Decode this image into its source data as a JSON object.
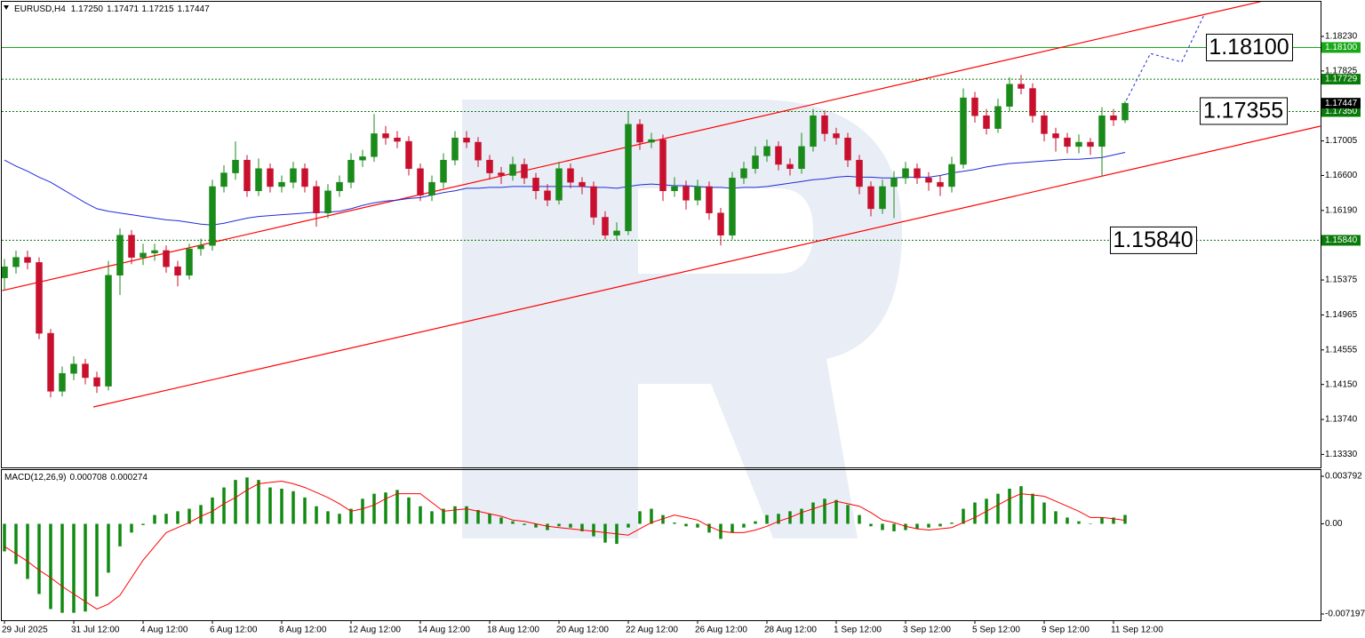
{
  "chart_data": [
    {
      "type": "candlestick",
      "title": "EURUSD,H4",
      "title_values": [
        "1.17250",
        "1.17471",
        "1.17215",
        "1.17447"
      ],
      "categories": [
        "29 Jul 2025",
        null,
        null,
        null,
        null,
        null,
        "31 Jul 12:00",
        null,
        null,
        null,
        null,
        null,
        "4 Aug 12:00",
        null,
        null,
        null,
        null,
        null,
        "6 Aug 12:00",
        null,
        null,
        null,
        null,
        null,
        "8 Aug 12:00",
        null,
        null,
        null,
        null,
        null,
        "12 Aug 12:00",
        null,
        null,
        null,
        null,
        null,
        "14 Aug 12:00",
        null,
        null,
        null,
        null,
        null,
        "18 Aug 12:00",
        null,
        null,
        null,
        null,
        null,
        "20 Aug 12:00",
        null,
        null,
        null,
        null,
        null,
        "22 Aug 12:00",
        null,
        null,
        null,
        null,
        null,
        "26 Aug 12:00",
        null,
        null,
        null,
        null,
        null,
        "28 Aug 12:00",
        null,
        null,
        null,
        null,
        null,
        "1 Sep 12:00",
        null,
        null,
        null,
        null,
        null,
        "3 Sep 12:00",
        null,
        null,
        null,
        null,
        null,
        "5 Sep 12:00",
        null,
        null,
        null,
        null,
        null,
        "9 Sep 12:00",
        null,
        null,
        null,
        null,
        null,
        "11 Sep 12:00",
        null
      ],
      "open": [
        1.154,
        1.1553,
        1.1564,
        1.1558,
        1.1475,
        1.1407,
        1.1428,
        1.1439,
        1.1423,
        1.1413,
        1.1543,
        1.159,
        1.1564,
        1.1569,
        1.1572,
        1.1553,
        1.1543,
        1.1574,
        1.1578,
        1.1647,
        1.1663,
        1.1678,
        1.1642,
        1.1668,
        1.1647,
        1.1652,
        1.1668,
        1.1647,
        1.1616,
        1.1642,
        1.1652,
        1.1678,
        1.1682,
        1.1709,
        1.1704,
        1.17,
        1.1668,
        1.1637,
        1.1652,
        1.1678,
        1.1704,
        1.1699,
        1.1678,
        1.1663,
        1.166,
        1.1673,
        1.1657,
        1.1642,
        1.1631,
        1.1668,
        1.1652,
        1.1647,
        1.1611,
        1.159,
        1.1595,
        1.172,
        1.1699,
        1.1702,
        1.1642,
        1.1647,
        1.1631,
        1.1647,
        1.1616,
        1.159,
        1.1657,
        1.1668,
        1.1683,
        1.1694,
        1.1673,
        1.1668,
        1.1694,
        1.173,
        1.1709,
        1.1704,
        1.1678,
        1.1647,
        1.1621,
        1.1647,
        1.1657,
        1.1668,
        1.1657,
        1.1652,
        1.1647,
        1.1673,
        1.1751,
        1.173,
        1.1715,
        1.1741,
        1.1767,
        1.1762,
        1.173,
        1.1709,
        1.1704,
        1.1694,
        1.1699,
        1.1694,
        1.173,
        1.1725
      ],
      "high": [
        1.1562,
        1.1572,
        1.1572,
        1.1564,
        1.148,
        1.1436,
        1.1448,
        1.1445,
        1.143,
        1.156,
        1.1598,
        1.1596,
        1.158,
        1.158,
        1.1578,
        1.156,
        1.158,
        1.1586,
        1.1655,
        1.1672,
        1.17,
        1.1684,
        1.168,
        1.1674,
        1.166,
        1.1676,
        1.1674,
        1.1654,
        1.165,
        1.166,
        1.1686,
        1.169,
        1.1732,
        1.1718,
        1.1712,
        1.1706,
        1.1674,
        1.166,
        1.1686,
        1.1712,
        1.1712,
        1.1705,
        1.1684,
        1.167,
        1.1682,
        1.168,
        1.1663,
        1.165,
        1.1676,
        1.1674,
        1.1658,
        1.1653,
        1.1618,
        1.1605,
        1.1735,
        1.1726,
        1.171,
        1.1708,
        1.1658,
        1.1654,
        1.1655,
        1.1653,
        1.1622,
        1.1664,
        1.1676,
        1.1694,
        1.1702,
        1.17,
        1.168,
        1.171,
        1.1738,
        1.1736,
        1.1716,
        1.171,
        1.1684,
        1.1653,
        1.1655,
        1.1665,
        1.1676,
        1.1674,
        1.1664,
        1.166,
        1.1682,
        1.1762,
        1.1758,
        1.1738,
        1.175,
        1.1775,
        1.1778,
        1.1768,
        1.1736,
        1.1716,
        1.171,
        1.1708,
        1.1704,
        1.174,
        1.1738,
        1.17471
      ],
      "low": [
        1.1525,
        1.1545,
        1.155,
        1.1468,
        1.14,
        1.1401,
        1.142,
        1.1415,
        1.1405,
        1.1408,
        1.152,
        1.1556,
        1.1555,
        1.156,
        1.1546,
        1.153,
        1.1538,
        1.1566,
        1.1572,
        1.164,
        1.1655,
        1.1635,
        1.1636,
        1.164,
        1.164,
        1.1645,
        1.164,
        1.16,
        1.161,
        1.1635,
        1.1645,
        1.167,
        1.1676,
        1.1696,
        1.1692,
        1.166,
        1.163,
        1.163,
        1.1645,
        1.1672,
        1.1692,
        1.167,
        1.1655,
        1.165,
        1.1654,
        1.165,
        1.1632,
        1.1624,
        1.1626,
        1.1645,
        1.1638,
        1.1602,
        1.1585,
        1.1584,
        1.159,
        1.169,
        1.1692,
        1.163,
        1.1635,
        1.162,
        1.1625,
        1.1608,
        1.1578,
        1.1585,
        1.165,
        1.1662,
        1.1676,
        1.1666,
        1.166,
        1.1662,
        1.1688,
        1.17,
        1.1696,
        1.167,
        1.1638,
        1.1612,
        1.1615,
        1.161,
        1.165,
        1.165,
        1.1642,
        1.1636,
        1.164,
        1.1668,
        1.1722,
        1.1708,
        1.171,
        1.1735,
        1.1755,
        1.1722,
        1.17,
        1.1688,
        1.1686,
        1.1686,
        1.1684,
        1.166,
        1.1718,
        1.17215
      ],
      "close": [
        1.1553,
        1.1564,
        1.1558,
        1.1475,
        1.1407,
        1.1428,
        1.1439,
        1.1423,
        1.1413,
        1.1543,
        1.159,
        1.1564,
        1.1569,
        1.1572,
        1.1553,
        1.1543,
        1.1574,
        1.1578,
        1.1647,
        1.1663,
        1.1678,
        1.1642,
        1.1668,
        1.1647,
        1.1652,
        1.1668,
        1.1647,
        1.1616,
        1.1642,
        1.1652,
        1.1678,
        1.1682,
        1.1709,
        1.1704,
        1.17,
        1.1668,
        1.1637,
        1.1652,
        1.1678,
        1.1704,
        1.1699,
        1.1678,
        1.1663,
        1.166,
        1.1673,
        1.1657,
        1.1642,
        1.1631,
        1.1668,
        1.1652,
        1.1647,
        1.1611,
        1.159,
        1.1595,
        1.172,
        1.1699,
        1.1702,
        1.1642,
        1.1647,
        1.1631,
        1.1647,
        1.1616,
        1.159,
        1.1657,
        1.1668,
        1.1683,
        1.1694,
        1.1673,
        1.1668,
        1.1694,
        1.173,
        1.1709,
        1.1704,
        1.1678,
        1.1647,
        1.1621,
        1.1647,
        1.1657,
        1.1668,
        1.1657,
        1.1652,
        1.1647,
        1.1673,
        1.1751,
        1.173,
        1.1715,
        1.1741,
        1.1767,
        1.1762,
        1.173,
        1.1709,
        1.1704,
        1.1694,
        1.1699,
        1.1694,
        1.173,
        1.1725,
        1.17447
      ],
      "up_color": "#1a8a1a",
      "down_color": "#c8102e",
      "ma": {
        "color": "#1f2bd8",
        "values": [
          1.1678,
          1.1671,
          1.1665,
          1.1658,
          1.1652,
          1.1644,
          1.1636,
          1.1628,
          1.1621,
          1.1618,
          1.1616,
          1.1614,
          1.1612,
          1.161,
          1.1608,
          1.1607,
          1.1605,
          1.1603,
          1.1602,
          1.1604,
          1.1607,
          1.161,
          1.1612,
          1.1613,
          1.1614,
          1.1615,
          1.1616,
          1.1617,
          1.1617,
          1.1618,
          1.1621,
          1.1625,
          1.1628,
          1.163,
          1.1631,
          1.1633,
          1.1634,
          1.1637,
          1.164,
          1.1642,
          1.1645,
          1.1645,
          1.1646,
          1.1646,
          1.1647,
          1.1647,
          1.1647,
          1.1647,
          1.1647,
          1.1647,
          1.1647,
          1.1646,
          1.1646,
          1.1645,
          1.1647,
          1.1649,
          1.165,
          1.1649,
          1.1648,
          1.1648,
          1.1647,
          1.1646,
          1.1646,
          1.1645,
          1.1646,
          1.1646,
          1.1647,
          1.1649,
          1.1651,
          1.1653,
          1.1655,
          1.1656,
          1.1658,
          1.1659,
          1.1658,
          1.1658,
          1.1657,
          1.1657,
          1.1658,
          1.1658,
          1.1658,
          1.166,
          1.1663,
          1.1665,
          1.1667,
          1.167,
          1.1672,
          1.1674,
          1.1675,
          1.1676,
          1.1677,
          1.1678,
          1.1679,
          1.1679,
          1.168,
          1.1681,
          1.1684,
          1.1687
        ]
      },
      "channel": {
        "color": "#ff0000",
        "lines": [
          {
            "x": [
              -0.2,
              108.8
            ],
            "y": [
              1.1525,
              1.1864
            ]
          },
          {
            "x": [
              7.7,
              113.9
            ],
            "y": [
              1.13886,
              1.17178
            ]
          }
        ]
      },
      "forecast": {
        "color": "#1f2bd8",
        "x": [
          97.1,
          99.2,
          101.9,
          103.8
        ],
        "y": [
          1.1748,
          1.1803,
          1.1793,
          1.1847
        ]
      },
      "levels": [
        {
          "value": 1.181,
          "label": "1.18100",
          "style": "solid",
          "color": "#18a818"
        },
        {
          "value": 1.17729,
          "label": "1.17729",
          "style": "dotted",
          "color": "#0a7a0a"
        },
        {
          "value": 1.1735,
          "label": "1.17350",
          "style": "dotted",
          "color": "#0a7a0a"
        },
        {
          "value": 1.1584,
          "label": "1.15840",
          "style": "dotted",
          "color": "#0a7a0a"
        }
      ],
      "price_tag": {
        "value": 1.17447,
        "label": "1.17447"
      },
      "callouts": [
        {
          "value": 1.181,
          "label": "1.18100"
        },
        {
          "value": 1.17355,
          "label": "1.17355"
        },
        {
          "value": 1.1584,
          "label": "1.15840"
        }
      ],
      "ylim": [
        1.13178,
        1.18636
      ],
      "yticks": [
        {
          "value": 1.1823,
          "label": "1.18230"
        },
        1.17825,
        1.17005,
        {
          "value": 1.166,
          "label": "1.16600"
        },
        {
          "value": 1.1619,
          "label": "1.16190"
        },
        1.15375,
        1.14965,
        1.14555,
        {
          "value": 1.1415,
          "label": "1.14150"
        },
        {
          "value": 1.1374,
          "label": "1.13740"
        },
        {
          "value": 1.1333,
          "label": "1.13330"
        }
      ]
    },
    {
      "type": "macd",
      "title": "MACD(12,26,9)",
      "title_values": [
        "0.000708",
        "0.000274"
      ],
      "histogram": {
        "color": "#108a10",
        "values": [
          -0.0022,
          -0.0032,
          -0.0044,
          -0.0056,
          -0.0068,
          -0.0071,
          -0.0071,
          -0.007,
          -0.0058,
          -0.0039,
          -0.0018,
          -0.0007,
          -0.0001,
          0.0007,
          0.0008,
          0.001,
          0.0012,
          0.0015,
          0.0021,
          0.0029,
          0.0035,
          0.0037,
          0.0035,
          0.0029,
          0.0028,
          0.0026,
          0.0021,
          0.0014,
          0.001,
          0.0008,
          0.0012,
          0.002,
          0.0024,
          0.0025,
          0.0027,
          0.0021,
          0.0014,
          0.001,
          0.0012,
          0.0014,
          0.0014,
          0.0011,
          0.0008,
          0.0005,
          0.0002,
          -0.0001,
          -0.0003,
          -0.0005,
          -0.0002,
          -0.0003,
          -0.0006,
          -0.001,
          -0.0015,
          -0.0016,
          -0.0003,
          0.001,
          0.0012,
          0.0007,
          0.0001,
          -0.0002,
          -0.0003,
          -0.0007,
          -0.0012,
          -0.0007,
          -0.0003,
          0.0002,
          0.0007,
          0.0008,
          0.001,
          0.0012,
          0.0017,
          0.002,
          0.0019,
          0.0015,
          0.0007,
          -0.0002,
          -0.0005,
          -0.0006,
          -0.0005,
          -0.0004,
          -0.0003,
          -0.0002,
          0.0001,
          0.0012,
          0.0017,
          0.002,
          0.0024,
          0.0028,
          0.003,
          0.0024,
          0.0017,
          0.001,
          0.0005,
          0.0002,
          0,
          0.0005,
          0.0005,
          0.000708
        ]
      },
      "signal": {
        "color": "#ff0000",
        "values": [
          -0.0018,
          -0.0024,
          -0.003,
          -0.0037,
          -0.0043,
          -0.005,
          -0.0056,
          -0.0062,
          -0.0068,
          -0.0064,
          -0.0057,
          -0.0043,
          -0.0029,
          -0.0018,
          -0.0007,
          -0.0003,
          0.0001,
          0.0006,
          0.001,
          0.0016,
          0.0021,
          0.0027,
          0.0032,
          0.0033,
          0.0034,
          0.0032,
          0.0029,
          0.0025,
          0.0021,
          0.0016,
          0.001,
          0.0012,
          0.0015,
          0.002,
          0.0024,
          0.0024,
          0.0024,
          0.0017,
          0.001,
          0.0011,
          0.0012,
          0.001,
          0.0008,
          0.0006,
          0.0003,
          0.0002,
          0.0,
          -0.0002,
          -0.0003,
          -0.0004,
          -0.0005,
          -0.0006,
          -0.0007,
          -0.0008,
          -0.0009,
          -0.0004,
          0.0001,
          0.0004,
          0.0007,
          0.0005,
          0.0003,
          -0.0002,
          -0.0006,
          -0.0007,
          -0.0007,
          -0.0005,
          -0.0002,
          0.0002,
          0.0005,
          0.0009,
          0.0012,
          0.0015,
          0.0018,
          0.0016,
          0.0014,
          0.0009,
          0.0003,
          0.0001,
          -0.0002,
          -0.0004,
          -0.0005,
          -0.0004,
          -0.0003,
          0.0001,
          0.0005,
          0.001,
          0.0015,
          0.002,
          0.0024,
          0.0023,
          0.0022,
          0.0018,
          0.0014,
          0.001,
          0.0005,
          0.0005,
          0.0004,
          0.000274
        ]
      },
      "ylim": [
        -0.007197,
        0.003792
      ],
      "yticks": [
        0.003792,
        {
          "value": 0,
          "label": "0.00"
        },
        -0.007197
      ]
    }
  ]
}
